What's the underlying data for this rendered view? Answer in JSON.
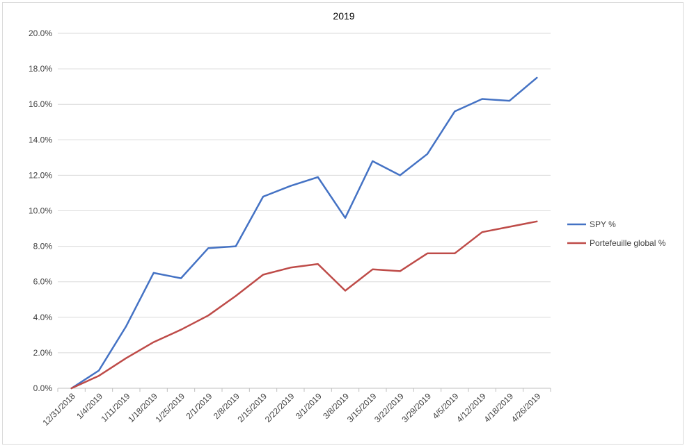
{
  "chart_data": {
    "type": "line",
    "title": "2019",
    "xlabel": "",
    "ylabel": "",
    "categories": [
      "12/31/2018",
      "1/4/2019",
      "1/11/2019",
      "1/18/2019",
      "1/25/2019",
      "2/1/2019",
      "2/8/2019",
      "2/15/2019",
      "2/22/2019",
      "3/1/2019",
      "3/8/2019",
      "3/15/2019",
      "3/22/2019",
      "3/29/2019",
      "4/5/2019",
      "4/12/2019",
      "4/18/2019",
      "4/26/2019"
    ],
    "ylim": [
      0,
      20
    ],
    "yticks": [
      "0.0%",
      "2.0%",
      "4.0%",
      "6.0%",
      "8.0%",
      "10.0%",
      "12.0%",
      "14.0%",
      "16.0%",
      "18.0%",
      "20.0%"
    ],
    "grid": true,
    "legend_position": "right",
    "series": [
      {
        "name": "SPY %",
        "color": "#4472C4",
        "values": [
          0.0,
          1.0,
          3.5,
          6.5,
          6.2,
          7.9,
          8.0,
          10.8,
          11.4,
          11.9,
          9.6,
          12.8,
          12.0,
          13.2,
          15.6,
          16.3,
          16.2,
          17.5
        ]
      },
      {
        "name": "Portefeuille global %",
        "color": "#BE4B48",
        "values": [
          0.0,
          0.7,
          1.7,
          2.6,
          3.3,
          4.1,
          5.2,
          6.4,
          6.8,
          7.0,
          5.5,
          6.7,
          6.6,
          7.6,
          7.6,
          8.8,
          9.1,
          9.4
        ]
      }
    ]
  }
}
